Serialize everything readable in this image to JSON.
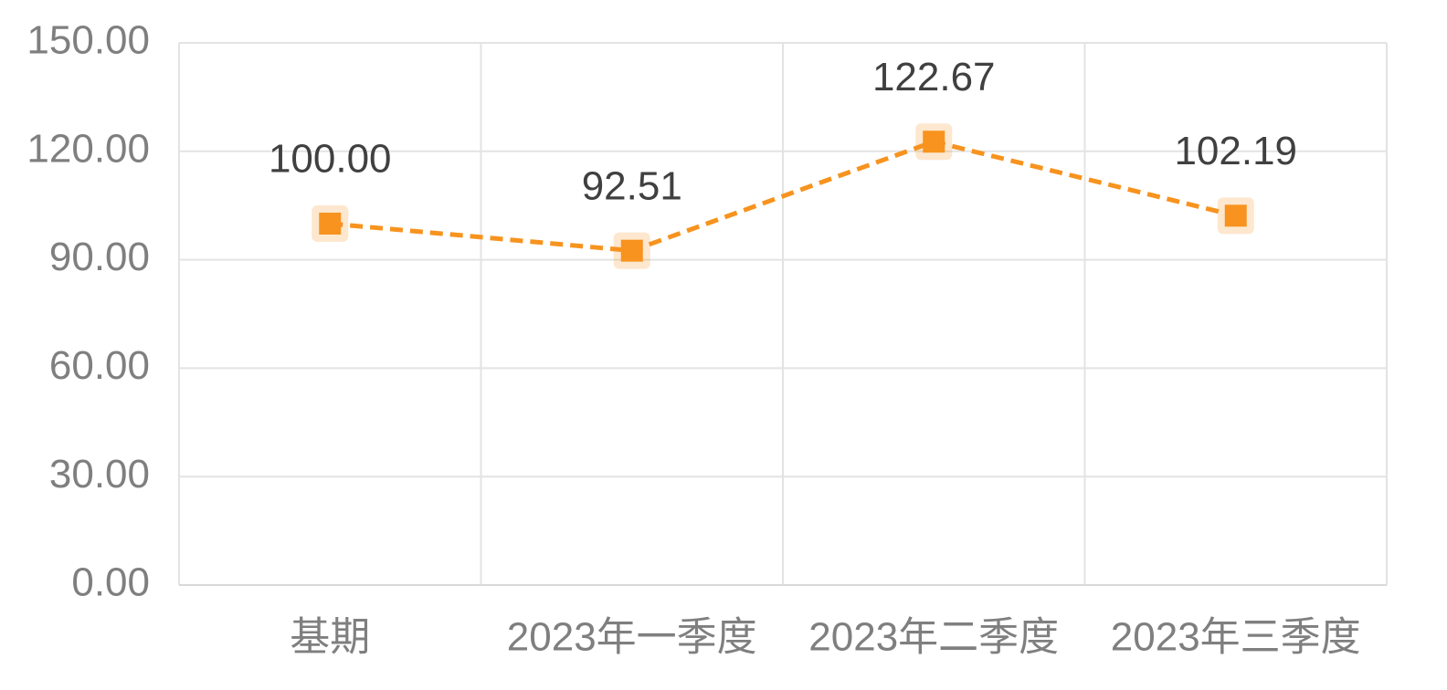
{
  "chart_data": {
    "type": "line",
    "categories": [
      "基期",
      "2023年一季度",
      "2023年二季度",
      "2023年三季度"
    ],
    "values": [
      100,
      92.51,
      122.67,
      102.19
    ],
    "value_labels": [
      "100.00",
      "92.51",
      "122.67",
      "102.19"
    ],
    "color": "#f7931e",
    "ylim": [
      0,
      150
    ],
    "yticks": [
      {
        "value": 0,
        "label": "0.00"
      },
      {
        "value": 30,
        "label": "30.00"
      },
      {
        "value": 60,
        "label": "60.00"
      },
      {
        "value": 90,
        "label": "90.00"
      },
      {
        "value": 120,
        "label": "120.00"
      },
      {
        "value": 150,
        "label": "150.00"
      }
    ],
    "grid": true
  }
}
